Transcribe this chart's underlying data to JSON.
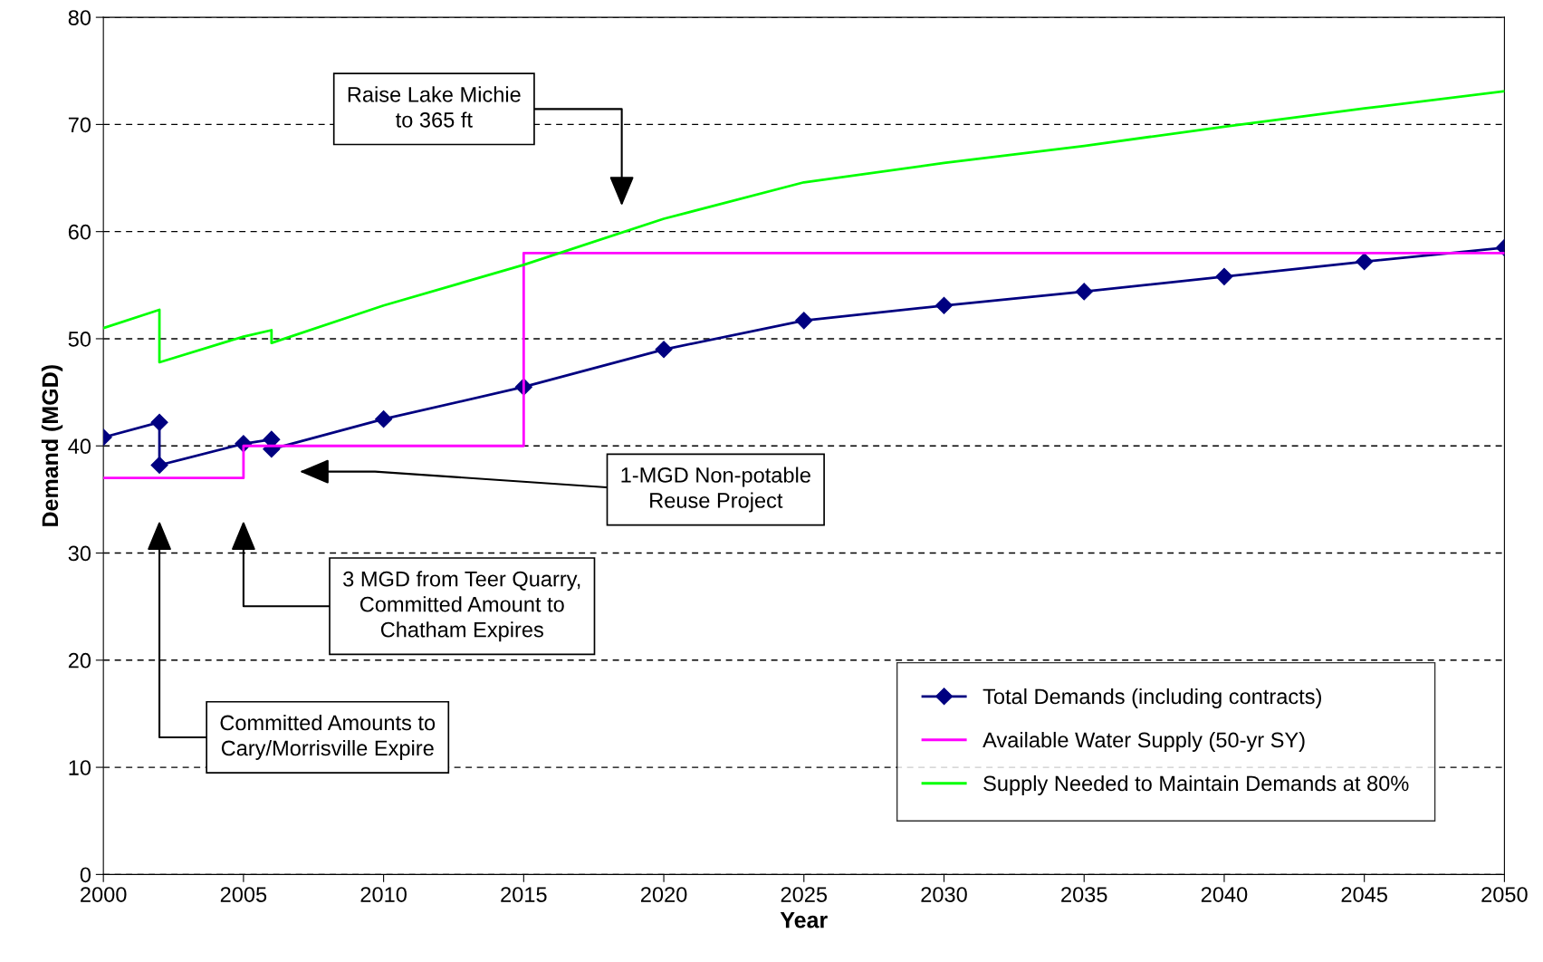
{
  "chart_data": {
    "type": "line",
    "xlabel": "Year",
    "ylabel": "Demand (MGD)",
    "xlim": [
      2000,
      2050
    ],
    "xticks": [
      2000,
      2005,
      2010,
      2015,
      2020,
      2025,
      2030,
      2035,
      2040,
      2045,
      2050
    ],
    "ylim": [
      0,
      80
    ],
    "yticks": [
      0,
      10,
      20,
      30,
      40,
      50,
      60,
      70,
      80
    ],
    "grid": "y",
    "legend": "bottom right",
    "line_style": "solid",
    "series": [
      {
        "name": "Total Demands (including contracts)",
        "color": "#000080",
        "marker": "diamond",
        "x": [
          2000,
          2002,
          2002,
          2005,
          2006,
          2006,
          2010,
          2015,
          2020,
          2025,
          2030,
          2035,
          2040,
          2045,
          2050
        ],
        "values": [
          40.8,
          42.2,
          38.2,
          40.2,
          40.6,
          39.7,
          42.5,
          45.5,
          49.0,
          51.7,
          53.1,
          54.4,
          55.8,
          57.2,
          58.5
        ]
      },
      {
        "name": "Available Water Supply (50-yr SY)",
        "color": "#ff00ff",
        "marker": "none",
        "x": [
          2000,
          2005,
          2005,
          2015,
          2015,
          2050
        ],
        "values": [
          37,
          37,
          40,
          40,
          58,
          58
        ]
      },
      {
        "name": "Supply Needed to Maintain Demands at 80%",
        "color": "#00ff00",
        "marker": "none",
        "x": [
          2000,
          2002,
          2002,
          2005,
          2006,
          2006,
          2010,
          2015,
          2020,
          2025,
          2030,
          2035,
          2040,
          2045,
          2050
        ],
        "values": [
          51.0,
          52.7,
          47.8,
          50.2,
          50.8,
          49.6,
          53.1,
          56.9,
          61.2,
          64.6,
          66.4,
          68.0,
          69.8,
          71.5,
          73.1
        ]
      }
    ],
    "annotations": [
      "Raise Lake Michie\nto 365 ft",
      "1-MGD Non-potable\nReuse Project",
      "3 MGD from Teer Quarry,\nCommitted Amount to\nChatham Expires",
      "Committed Amounts to\nCary/Morrisville Expire"
    ]
  }
}
